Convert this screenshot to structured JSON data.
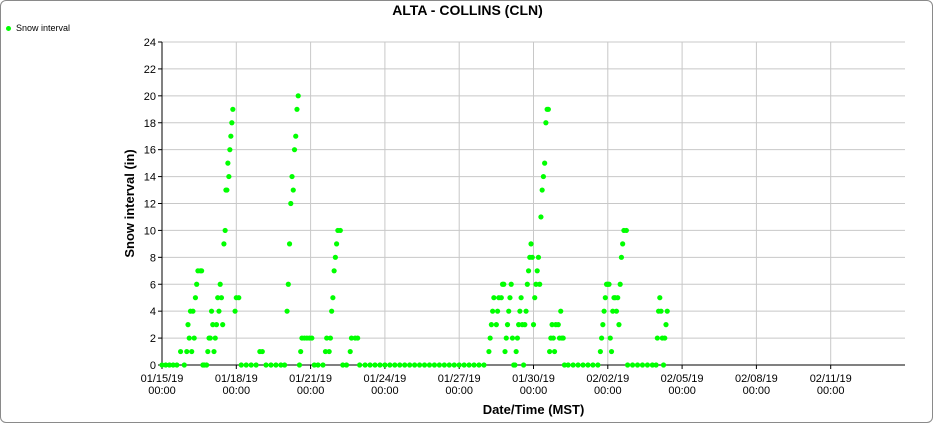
{
  "chart_data": {
    "type": "scatter",
    "title": "ALTA - COLLINS (CLN)",
    "xlabel": "Date/Time (MST)",
    "ylabel": "Snow interval (in)",
    "ylim": [
      0,
      24
    ],
    "yticks": [
      0,
      2,
      4,
      6,
      8,
      10,
      12,
      14,
      16,
      18,
      20,
      22,
      24
    ],
    "xlim": [
      "01/15/19 00:00",
      "02/14/19 00:00"
    ],
    "xticks": [
      {
        "date": "01/15/19",
        "time": "00:00"
      },
      {
        "date": "01/18/19",
        "time": "00:00"
      },
      {
        "date": "01/21/19",
        "time": "00:00"
      },
      {
        "date": "01/24/19",
        "time": "00:00"
      },
      {
        "date": "01/27/19",
        "time": "00:00"
      },
      {
        "date": "01/30/19",
        "time": "00:00"
      },
      {
        "date": "02/02/19",
        "time": "00:00"
      },
      {
        "date": "02/05/19",
        "time": "00:00"
      },
      {
        "date": "02/08/19",
        "time": "00:00"
      },
      {
        "date": "02/11/19",
        "time": "00:00"
      }
    ],
    "grid": true,
    "legend_position": "top-left",
    "series": [
      {
        "name": "Snow interval",
        "color": "#00ff00",
        "points": [
          [
            0.0,
            0
          ],
          [
            0.15,
            0
          ],
          [
            0.3,
            0
          ],
          [
            0.45,
            0
          ],
          [
            0.6,
            0
          ],
          [
            0.75,
            1
          ],
          [
            0.9,
            0
          ],
          [
            1.0,
            1
          ],
          [
            1.05,
            3
          ],
          [
            1.1,
            2
          ],
          [
            1.15,
            4
          ],
          [
            1.2,
            1
          ],
          [
            1.25,
            4
          ],
          [
            1.3,
            2
          ],
          [
            1.35,
            5
          ],
          [
            1.4,
            6
          ],
          [
            1.45,
            7
          ],
          [
            1.55,
            7
          ],
          [
            1.6,
            7
          ],
          [
            1.65,
            0
          ],
          [
            1.7,
            0
          ],
          [
            1.8,
            0
          ],
          [
            1.85,
            1
          ],
          [
            1.9,
            2
          ],
          [
            1.95,
            2
          ],
          [
            2.0,
            4
          ],
          [
            2.05,
            3
          ],
          [
            2.1,
            1
          ],
          [
            2.15,
            2
          ],
          [
            2.2,
            3
          ],
          [
            2.25,
            5
          ],
          [
            2.3,
            4
          ],
          [
            2.35,
            6
          ],
          [
            2.4,
            5
          ],
          [
            2.45,
            3
          ],
          [
            2.5,
            9
          ],
          [
            2.55,
            10
          ],
          [
            2.58,
            13
          ],
          [
            2.62,
            13
          ],
          [
            2.66,
            15
          ],
          [
            2.7,
            14
          ],
          [
            2.74,
            16
          ],
          [
            2.78,
            17
          ],
          [
            2.82,
            18
          ],
          [
            2.86,
            19
          ],
          [
            2.95,
            4
          ],
          [
            3.0,
            5
          ],
          [
            3.1,
            5
          ],
          [
            3.2,
            0
          ],
          [
            3.4,
            0
          ],
          [
            3.6,
            0
          ],
          [
            3.8,
            0
          ],
          [
            3.95,
            1
          ],
          [
            4.05,
            1
          ],
          [
            4.2,
            0
          ],
          [
            4.4,
            0
          ],
          [
            4.6,
            0
          ],
          [
            4.8,
            0
          ],
          [
            4.95,
            0
          ],
          [
            5.05,
            4
          ],
          [
            5.1,
            6
          ],
          [
            5.15,
            9
          ],
          [
            5.2,
            12
          ],
          [
            5.25,
            14
          ],
          [
            5.3,
            13
          ],
          [
            5.35,
            16
          ],
          [
            5.4,
            17
          ],
          [
            5.45,
            19
          ],
          [
            5.5,
            20
          ],
          [
            5.55,
            0
          ],
          [
            5.6,
            1
          ],
          [
            5.65,
            2
          ],
          [
            5.75,
            2
          ],
          [
            5.85,
            2
          ],
          [
            5.95,
            2
          ],
          [
            6.05,
            2
          ],
          [
            6.15,
            0
          ],
          [
            6.3,
            0
          ],
          [
            6.5,
            0
          ],
          [
            6.6,
            1
          ],
          [
            6.65,
            2
          ],
          [
            6.75,
            1
          ],
          [
            6.8,
            2
          ],
          [
            6.85,
            4
          ],
          [
            6.9,
            5
          ],
          [
            6.95,
            7
          ],
          [
            7.0,
            8
          ],
          [
            7.05,
            9
          ],
          [
            7.1,
            10
          ],
          [
            7.2,
            10
          ],
          [
            7.3,
            0
          ],
          [
            7.45,
            0
          ],
          [
            7.6,
            1
          ],
          [
            7.65,
            2
          ],
          [
            7.8,
            2
          ],
          [
            7.9,
            2
          ],
          [
            7.98,
            0
          ],
          [
            8.2,
            0
          ],
          [
            8.4,
            0
          ],
          [
            8.6,
            0
          ],
          [
            8.8,
            0
          ],
          [
            9.0,
            0
          ],
          [
            9.2,
            0
          ],
          [
            9.4,
            0
          ],
          [
            9.6,
            0
          ],
          [
            9.8,
            0
          ],
          [
            10.0,
            0
          ],
          [
            10.2,
            0
          ],
          [
            10.4,
            0
          ],
          [
            10.6,
            0
          ],
          [
            10.8,
            0
          ],
          [
            11.0,
            0
          ],
          [
            11.2,
            0
          ],
          [
            11.4,
            0
          ],
          [
            11.6,
            0
          ],
          [
            11.8,
            0
          ],
          [
            12.0,
            0
          ],
          [
            12.2,
            0
          ],
          [
            12.4,
            0
          ],
          [
            12.6,
            0
          ],
          [
            12.8,
            0
          ],
          [
            13.0,
            0
          ],
          [
            13.2,
            1
          ],
          [
            13.25,
            2
          ],
          [
            13.3,
            3
          ],
          [
            13.35,
            4
          ],
          [
            13.4,
            5
          ],
          [
            13.5,
            3
          ],
          [
            13.55,
            4
          ],
          [
            13.6,
            5
          ],
          [
            13.7,
            5
          ],
          [
            13.75,
            6
          ],
          [
            13.8,
            6
          ],
          [
            13.85,
            1
          ],
          [
            13.9,
            2
          ],
          [
            13.95,
            3
          ],
          [
            14.0,
            4
          ],
          [
            14.05,
            5
          ],
          [
            14.1,
            6
          ],
          [
            14.15,
            2
          ],
          [
            14.2,
            0
          ],
          [
            14.25,
            0
          ],
          [
            14.3,
            1
          ],
          [
            14.35,
            2
          ],
          [
            14.4,
            3
          ],
          [
            14.45,
            4
          ],
          [
            14.5,
            5
          ],
          [
            14.55,
            3
          ],
          [
            14.6,
            0
          ],
          [
            14.65,
            3
          ],
          [
            14.7,
            4
          ],
          [
            14.75,
            6
          ],
          [
            14.8,
            7
          ],
          [
            14.85,
            8
          ],
          [
            14.9,
            9
          ],
          [
            14.95,
            8
          ],
          [
            15.0,
            3
          ],
          [
            15.05,
            5
          ],
          [
            15.1,
            6
          ],
          [
            15.15,
            7
          ],
          [
            15.2,
            8
          ],
          [
            15.25,
            6
          ],
          [
            15.3,
            11
          ],
          [
            15.35,
            13
          ],
          [
            15.4,
            14
          ],
          [
            15.45,
            15
          ],
          [
            15.5,
            18
          ],
          [
            15.55,
            19
          ],
          [
            15.6,
            19
          ],
          [
            15.65,
            1
          ],
          [
            15.7,
            2
          ],
          [
            15.75,
            3
          ],
          [
            15.8,
            2
          ],
          [
            15.85,
            1
          ],
          [
            15.9,
            3
          ],
          [
            16.0,
            3
          ],
          [
            16.05,
            2
          ],
          [
            16.1,
            4
          ],
          [
            16.15,
            2
          ],
          [
            16.2,
            2
          ],
          [
            16.25,
            0
          ],
          [
            16.4,
            0
          ],
          [
            16.6,
            0
          ],
          [
            16.8,
            0
          ],
          [
            17.0,
            0
          ],
          [
            17.2,
            0
          ],
          [
            17.4,
            0
          ],
          [
            17.6,
            0
          ],
          [
            17.7,
            1
          ],
          [
            17.75,
            2
          ],
          [
            17.8,
            3
          ],
          [
            17.85,
            4
          ],
          [
            17.9,
            5
          ],
          [
            17.95,
            6
          ],
          [
            18.0,
            6
          ],
          [
            18.05,
            6
          ],
          [
            18.1,
            2
          ],
          [
            18.15,
            1
          ],
          [
            18.2,
            4
          ],
          [
            18.25,
            5
          ],
          [
            18.3,
            5
          ],
          [
            18.35,
            4
          ],
          [
            18.4,
            5
          ],
          [
            18.45,
            3
          ],
          [
            18.5,
            6
          ],
          [
            18.55,
            8
          ],
          [
            18.6,
            9
          ],
          [
            18.65,
            10
          ],
          [
            18.75,
            10
          ],
          [
            18.8,
            0
          ],
          [
            19.0,
            0
          ],
          [
            19.2,
            0
          ],
          [
            19.4,
            0
          ],
          [
            19.6,
            0
          ],
          [
            19.8,
            0
          ],
          [
            19.95,
            0
          ],
          [
            20.0,
            2
          ],
          [
            20.05,
            4
          ],
          [
            20.1,
            5
          ],
          [
            20.15,
            4
          ],
          [
            20.2,
            2
          ],
          [
            20.25,
            0
          ],
          [
            20.3,
            2
          ],
          [
            20.35,
            3
          ],
          [
            20.4,
            4
          ]
        ]
      }
    ]
  }
}
